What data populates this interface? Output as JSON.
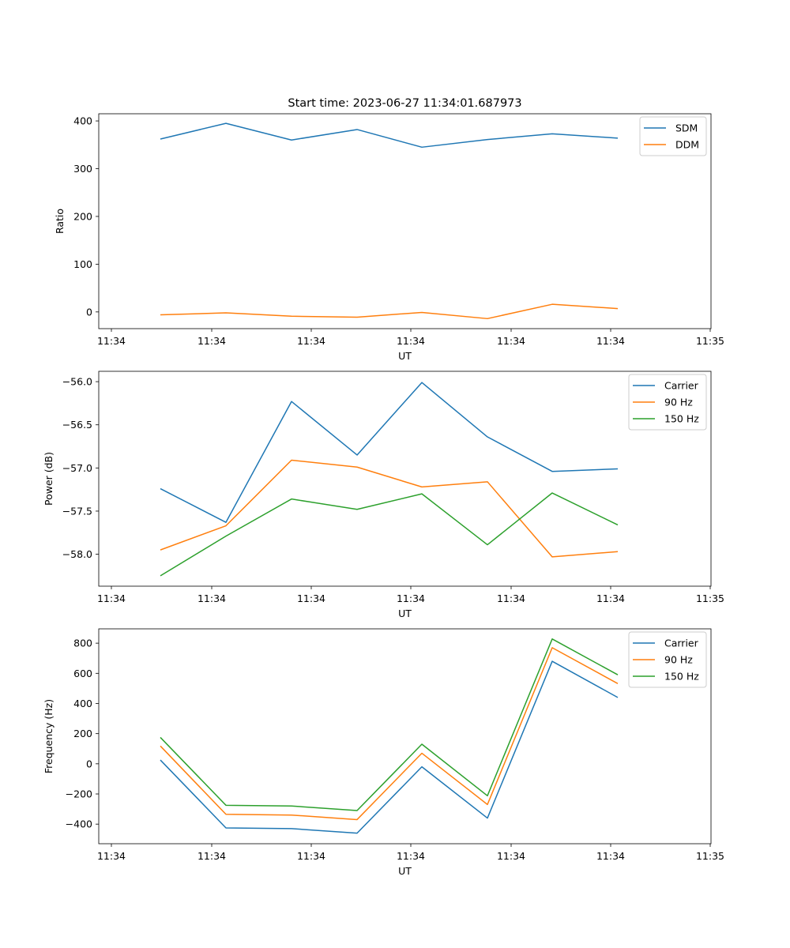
{
  "chart_data": [
    {
      "type": "line",
      "title": "Start time: 2023-06-27 11:34:01.687973",
      "xlabel": "UT",
      "ylabel": "Ratio",
      "x_ticks": [
        "11:34",
        "11:34",
        "11:34",
        "11:34",
        "11:34",
        "11:34",
        "11:35"
      ],
      "y_ticks": [
        0,
        100,
        200,
        300,
        400
      ],
      "ylim": [
        -35,
        415
      ],
      "legend_position": "top-right",
      "series": [
        {
          "name": "SDM",
          "color": "#1f77b4",
          "values": [
            362,
            395,
            360,
            382,
            345,
            361,
            373,
            364
          ]
        },
        {
          "name": "DDM",
          "color": "#ff7f0e",
          "values": [
            -6,
            -2,
            -9,
            -11,
            -1,
            -14,
            16,
            7
          ]
        }
      ]
    },
    {
      "type": "line",
      "title": "",
      "xlabel": "UT",
      "ylabel": "Power (dB)",
      "x_ticks": [
        "11:34",
        "11:34",
        "11:34",
        "11:34",
        "11:34",
        "11:34",
        "11:35"
      ],
      "y_ticks": [
        -58.0,
        -57.5,
        -57.0,
        -56.5,
        -56.0
      ],
      "y_tick_labels": [
        "−58.0",
        "−57.5",
        "−57.0",
        "−56.5",
        "−56.0"
      ],
      "ylim": [
        -58.37,
        -55.88
      ],
      "legend_position": "top-right",
      "series": [
        {
          "name": "Carrier",
          "color": "#1f77b4",
          "values": [
            -57.24,
            -57.63,
            -56.23,
            -56.85,
            -56.01,
            -56.64,
            -57.04,
            -57.01
          ]
        },
        {
          "name": "90 Hz",
          "color": "#ff7f0e",
          "values": [
            -57.95,
            -57.67,
            -56.91,
            -56.99,
            -57.22,
            -57.16,
            -58.03,
            -57.97
          ]
        },
        {
          "name": "150 Hz",
          "color": "#2ca02c",
          "values": [
            -58.25,
            -57.79,
            -57.36,
            -57.48,
            -57.3,
            -57.89,
            -57.29,
            -57.66
          ]
        }
      ]
    },
    {
      "type": "line",
      "title": "",
      "xlabel": "UT",
      "ylabel": "Frequency (Hz)",
      "x_ticks": [
        "11:34",
        "11:34",
        "11:34",
        "11:34",
        "11:34",
        "11:34",
        "11:35"
      ],
      "y_ticks": [
        -400,
        -200,
        0,
        200,
        400,
        600,
        800
      ],
      "y_tick_labels": [
        "−400",
        "−200",
        "0",
        "200",
        "400",
        "600",
        "800"
      ],
      "ylim": [
        -530,
        895
      ],
      "legend_position": "top-right",
      "series": [
        {
          "name": "Carrier",
          "color": "#1f77b4",
          "values": [
            25,
            -425,
            -430,
            -460,
            -20,
            -360,
            680,
            440
          ]
        },
        {
          "name": "90 Hz",
          "color": "#ff7f0e",
          "values": [
            118,
            -335,
            -340,
            -370,
            70,
            -270,
            770,
            532
          ]
        },
        {
          "name": "150 Hz",
          "color": "#2ca02c",
          "values": [
            175,
            -275,
            -280,
            -310,
            130,
            -212,
            828,
            590
          ]
        }
      ]
    }
  ]
}
